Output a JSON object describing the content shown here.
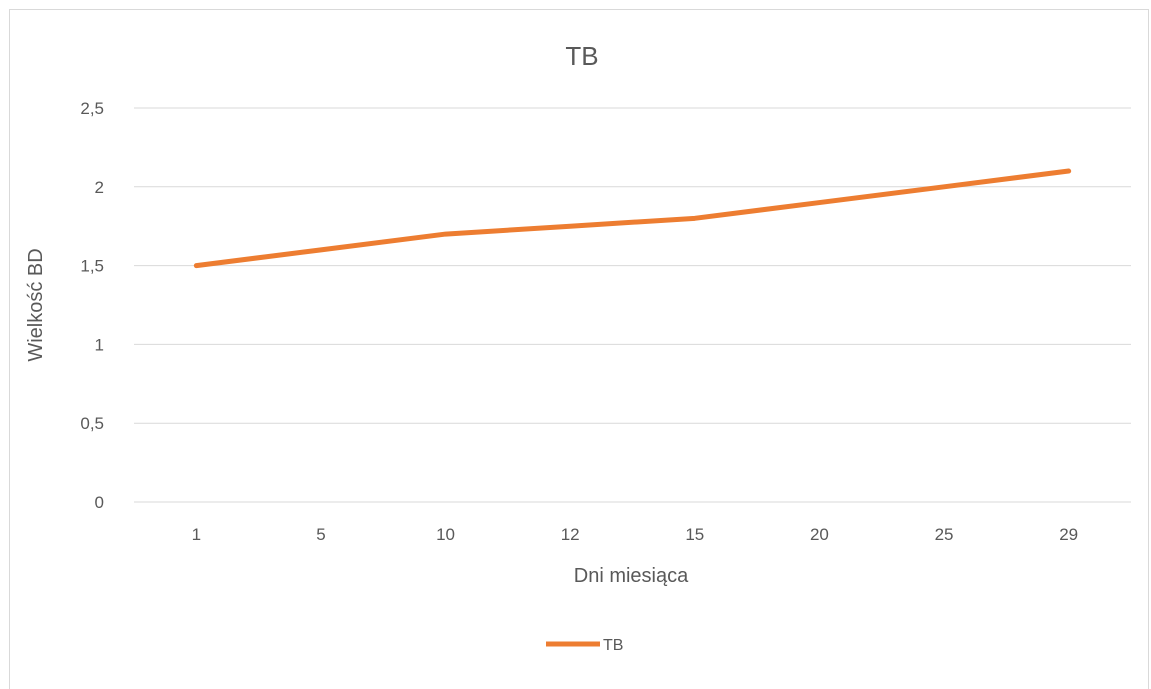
{
  "chart_data": {
    "type": "line",
    "title": "TB",
    "xlabel": "Dni miesiąca",
    "ylabel": "Wielkość BD",
    "categories": [
      "1",
      "5",
      "10",
      "12",
      "15",
      "20",
      "25",
      "29"
    ],
    "series": [
      {
        "name": "TB",
        "values": [
          1.5,
          1.6,
          1.7,
          1.75,
          1.8,
          1.9,
          2.0,
          2.1
        ],
        "color": "#ED7D31"
      }
    ],
    "ylim": [
      0,
      2.5
    ],
    "yticks": [
      "0",
      "0,5",
      "1",
      "1,5",
      "2",
      "2,5"
    ],
    "grid": true,
    "legend_position": "bottom"
  }
}
